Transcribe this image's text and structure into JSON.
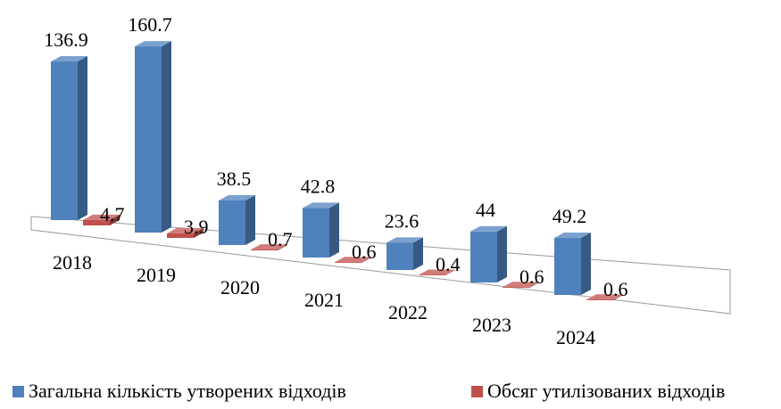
{
  "chart_data": {
    "type": "bar3d",
    "categories": [
      "2018",
      "2019",
      "2020",
      "2021",
      "2022",
      "2023",
      "2024"
    ],
    "series": [
      {
        "name": "Загальна кількість утворених відходів",
        "color": "#4f81bd",
        "values": [
          136.9,
          160.7,
          38.5,
          42.8,
          23.6,
          44,
          49.2
        ]
      },
      {
        "name": "Обсяг утилізованих відходів",
        "color": "#c0504d",
        "values": [
          4.7,
          3.9,
          0.7,
          0.6,
          0.4,
          0.6,
          0.6
        ]
      }
    ],
    "legend": "bottom"
  }
}
